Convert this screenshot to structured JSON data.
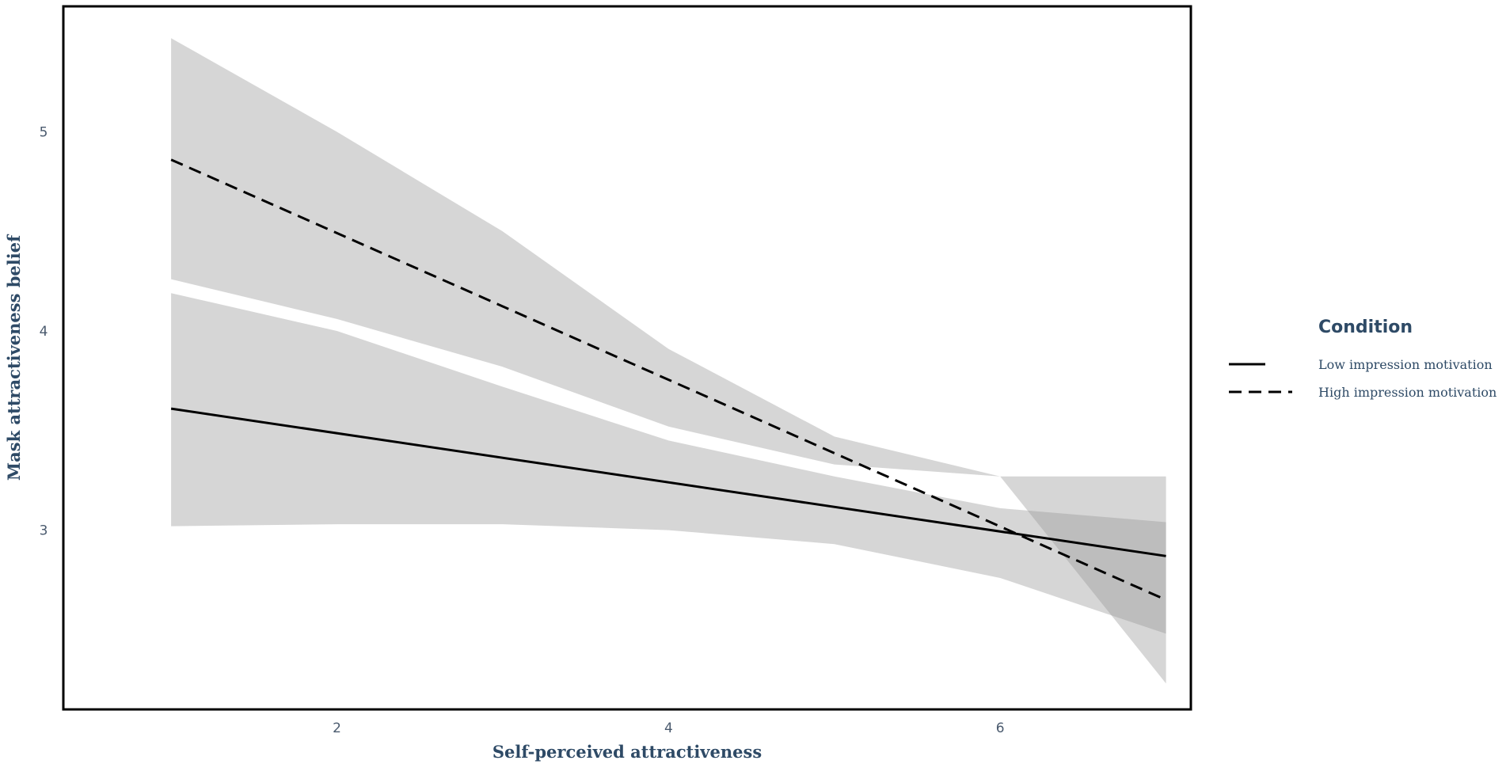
{
  "chart_data": {
    "type": "line",
    "xlabel": "Self-perceived attractiveness",
    "ylabel": "Mask attractiveness belief",
    "xlim": [
      0.35,
      7.15
    ],
    "ylim": [
      2.1,
      5.63
    ],
    "x_ticks": [
      "2",
      "4",
      "6"
    ],
    "x_tick_values": [
      2,
      4,
      6
    ],
    "y_ticks": [
      "3",
      "4",
      "5"
    ],
    "y_tick_values": [
      3,
      4,
      5
    ],
    "grid": false,
    "legend": {
      "title": "Condition",
      "placement": "right"
    },
    "series": [
      {
        "name": "Low impression motivation",
        "line_style": "solid",
        "color": "#000000",
        "x": [
          1,
          7
        ],
        "y": [
          3.61,
          2.87
        ],
        "ci_x": [
          1,
          2,
          3,
          4,
          5,
          6,
          7
        ],
        "ci_lower": [
          3.02,
          3.03,
          3.03,
          3.0,
          2.93,
          2.76,
          2.48
        ],
        "ci_upper": [
          4.19,
          4.0,
          3.72,
          3.45,
          3.27,
          3.11,
          3.04
        ]
      },
      {
        "name": "High impression motivation",
        "line_style": "dashed",
        "color": "#000000",
        "x": [
          1,
          7
        ],
        "y": [
          4.86,
          2.65
        ],
        "ci_x": [
          1,
          2,
          3,
          4,
          5,
          6,
          7
        ],
        "ci_lower": [
          4.26,
          4.06,
          3.82,
          3.52,
          3.33,
          3.27,
          2.23
        ],
        "ci_upper": [
          5.47,
          5.0,
          4.5,
          3.91,
          3.47,
          3.27,
          3.27
        ]
      }
    ],
    "band_color": "#999999",
    "band_opacity": 0.4
  }
}
